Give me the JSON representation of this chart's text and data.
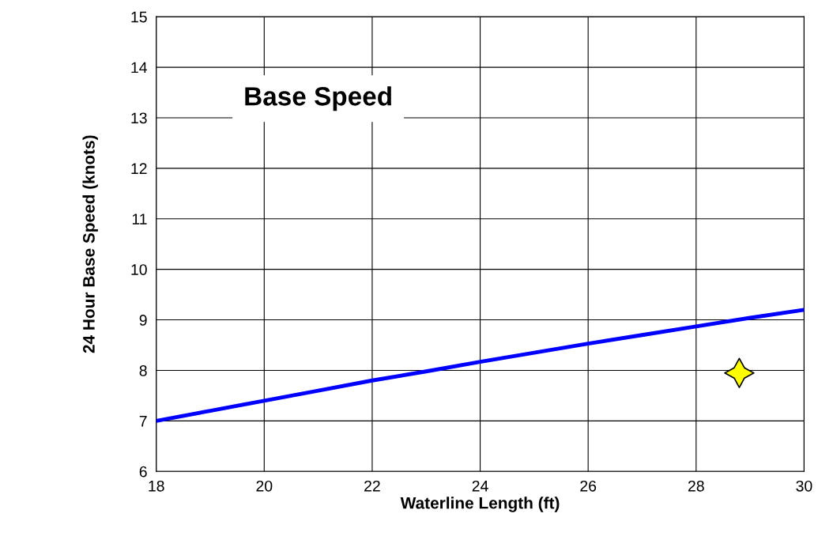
{
  "chart_data": {
    "type": "line",
    "title": "Base Speed",
    "xlabel": "Waterline Length (ft)",
    "ylabel": "24 Hour Base Speed (knots)",
    "xlim": [
      18,
      30
    ],
    "xticks": [
      18,
      20,
      22,
      24,
      26,
      28,
      30
    ],
    "ylim": [
      6,
      15
    ],
    "yticks": [
      6,
      7,
      8,
      9,
      10,
      11,
      12,
      13,
      14,
      15
    ],
    "grid": true,
    "series": [
      {
        "color": "#0000ff",
        "x": [
          18,
          19,
          20,
          21,
          22,
          23,
          24,
          25,
          26,
          27,
          28,
          29,
          30
        ],
        "values": [
          7.0,
          7.2,
          7.4,
          7.6,
          7.8,
          7.98,
          8.17,
          8.35,
          8.53,
          8.7,
          8.87,
          9.04,
          9.2
        ]
      },
      {
        "type": "scatter",
        "color": "#ffff00",
        "marker": "star",
        "x": [
          28.8
        ],
        "values": [
          7.95
        ]
      }
    ]
  }
}
